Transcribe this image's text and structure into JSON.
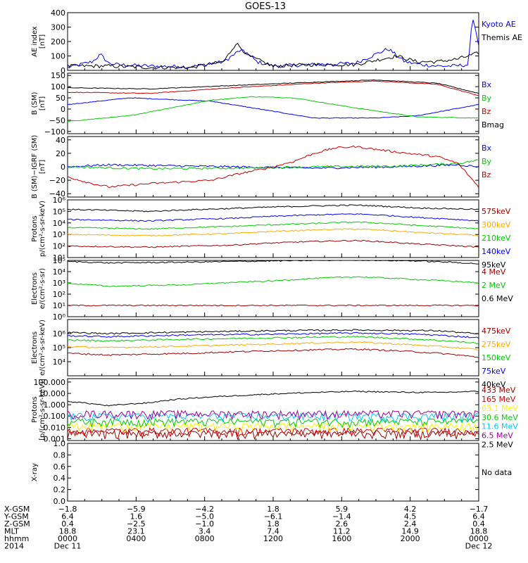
{
  "title": "GOES-13",
  "colors": {
    "black": "#000000",
    "blue": "#0000ff",
    "green": "#00cc00",
    "red": "#cc0000",
    "darkred": "#a00000",
    "orange": "#ffaa00",
    "cyan": "#00c8ff",
    "yellow": "#ffee00",
    "magenta": "#a000a0",
    "brown": "#a03030"
  },
  "chart_data": [
    {
      "type": "line",
      "id": "ae",
      "ylabel": [
        "AE index",
        "[nT]"
      ],
      "ylim": [
        0,
        400
      ],
      "yticks": [
        "0",
        "100",
        "200",
        "300",
        "400"
      ],
      "series": [
        {
          "name": "Kyoto AE",
          "color": "blue",
          "x": [
            0,
            0.06,
            0.08,
            0.1,
            0.12,
            0.2,
            0.3,
            0.38,
            0.42,
            0.44,
            0.46,
            0.5,
            0.6,
            0.7,
            0.78,
            0.82,
            0.86,
            0.9,
            0.94,
            0.975,
            0.985,
            1
          ],
          "values": [
            20,
            60,
            110,
            50,
            40,
            30,
            25,
            60,
            140,
            110,
            60,
            30,
            40,
            50,
            150,
            60,
            40,
            30,
            30,
            40,
            380,
            180
          ]
        },
        {
          "name": "Themis AE",
          "color": "black",
          "x": [
            0,
            0.1,
            0.2,
            0.3,
            0.38,
            0.41,
            0.44,
            0.5,
            0.6,
            0.7,
            0.8,
            0.85,
            0.9,
            0.95,
            1
          ],
          "values": [
            30,
            30,
            20,
            20,
            60,
            190,
            100,
            30,
            40,
            40,
            100,
            60,
            60,
            80,
            120
          ]
        }
      ]
    },
    {
      "type": "line",
      "id": "bsm",
      "ylabel": [
        "B (SM)",
        "[nT]"
      ],
      "ylim": [
        -110,
        160
      ],
      "yticks": [
        "150",
        "100",
        "50",
        "0",
        "−50",
        "−100"
      ],
      "series": [
        {
          "name": "Bx",
          "color": "blue",
          "x": [
            0,
            0.15,
            0.35,
            0.5,
            0.6,
            0.75,
            0.85,
            1
          ],
          "values": [
            20,
            50,
            35,
            -10,
            -40,
            -40,
            -30,
            20
          ]
        },
        {
          "name": "By",
          "color": "green",
          "x": [
            0,
            0.15,
            0.35,
            0.45,
            0.55,
            0.7,
            0.85,
            1
          ],
          "values": [
            -55,
            -30,
            40,
            55,
            50,
            5,
            -35,
            -40
          ]
        },
        {
          "name": "Bz",
          "color": "red",
          "x": [
            0,
            0.2,
            0.4,
            0.6,
            0.75,
            0.9,
            1
          ],
          "values": [
            75,
            70,
            95,
            115,
            125,
            110,
            60
          ]
        },
        {
          "name": "Bmag",
          "color": "black",
          "x": [
            0,
            0.2,
            0.4,
            0.6,
            0.75,
            0.9,
            1
          ],
          "values": [
            95,
            90,
            105,
            120,
            130,
            115,
            70
          ]
        }
      ]
    },
    {
      "type": "line",
      "id": "bdiff",
      "ylabel": [
        "B (SM)−IGRF (SM)",
        "[nT]"
      ],
      "ylim": [
        -45,
        45
      ],
      "yticks": [
        "40",
        "20",
        "0",
        "−20",
        "−40"
      ],
      "series": [
        {
          "name": "Bx",
          "color": "blue",
          "x": [
            0,
            0.1,
            0.2,
            0.4,
            0.6,
            0.8,
            0.95,
            1
          ],
          "values": [
            0,
            3,
            2,
            0,
            -2,
            0,
            3,
            0
          ]
        },
        {
          "name": "By",
          "color": "green",
          "x": [
            0,
            0.2,
            0.4,
            0.6,
            0.8,
            0.95,
            1
          ],
          "values": [
            0,
            -3,
            -2,
            0,
            1,
            5,
            10
          ]
        },
        {
          "name": "Bz",
          "color": "red",
          "x": [
            0,
            0.06,
            0.1,
            0.2,
            0.35,
            0.42,
            0.5,
            0.55,
            0.6,
            0.65,
            0.7,
            0.8,
            0.9,
            0.95,
            1
          ],
          "values": [
            -15,
            -25,
            -30,
            -25,
            -20,
            -10,
            0,
            8,
            20,
            28,
            30,
            22,
            15,
            5,
            -30
          ]
        }
      ]
    },
    {
      "type": "line",
      "id": "protons1",
      "log": true,
      "ylabel": [
        "Protons",
        "p/(cm²-s-sr-keV)"
      ],
      "ylim": [
        10,
        1000000
      ],
      "yticks": [
        "10⁶",
        "10⁵",
        "10⁴",
        "10³",
        "10²",
        "10¹"
      ],
      "series": [
        {
          "name": "575keV",
          "color": "darkred",
          "x": [
            0,
            0.2,
            0.4,
            0.6,
            0.7,
            0.85,
            1
          ],
          "values": [
            100,
            80,
            120,
            250,
            300,
            150,
            80
          ]
        },
        {
          "name": "300keV",
          "color": "orange",
          "x": [
            0,
            0.2,
            0.4,
            0.6,
            0.7,
            0.85,
            1
          ],
          "values": [
            1000,
            800,
            1200,
            2500,
            3000,
            1500,
            800
          ]
        },
        {
          "name": "210keV",
          "color": "green",
          "x": [
            0,
            0.2,
            0.4,
            0.6,
            0.7,
            0.85,
            1
          ],
          "values": [
            4000,
            3000,
            5000,
            9000,
            12000,
            6000,
            3000
          ]
        },
        {
          "name": "140keV",
          "color": "blue",
          "x": [
            0,
            0.2,
            0.4,
            0.6,
            0.7,
            0.85,
            1
          ],
          "values": [
            20000,
            15000,
            25000,
            50000,
            60000,
            30000,
            15000
          ]
        },
        {
          "name": "95keV",
          "color": "black",
          "x": [
            0,
            0.2,
            0.4,
            0.6,
            0.7,
            0.85,
            1
          ],
          "values": [
            150000,
            100000,
            180000,
            300000,
            350000,
            200000,
            150000
          ]
        }
      ]
    },
    {
      "type": "line",
      "id": "electrons1",
      "log": true,
      "ylabel": [
        "Electrons",
        "e/(cm²-s-sr)"
      ],
      "ylim": [
        1,
        100000
      ],
      "yticks": [
        "10⁵",
        "10⁴",
        "10³",
        "10²",
        "10¹",
        "10⁰"
      ],
      "series": [
        {
          "name": "4 MeV",
          "color": "darkred",
          "x": [
            0,
            1
          ],
          "values": [
            10,
            10
          ]
        },
        {
          "name": "2 MeV",
          "color": "green",
          "x": [
            0,
            0.1,
            0.3,
            0.5,
            0.7,
            0.85,
            1
          ],
          "values": [
            900,
            500,
            700,
            1500,
            3500,
            2000,
            1000
          ]
        },
        {
          "name": "0.6 MeV",
          "color": "black",
          "x": [
            0,
            0.1,
            0.3,
            0.5,
            0.7,
            0.85,
            1
          ],
          "values": [
            80000,
            60000,
            70000,
            90000,
            110000,
            90000,
            50000
          ]
        }
      ]
    },
    {
      "type": "line",
      "id": "electrons2",
      "log": true,
      "ylabel": [
        "Electrons",
        "e/(cm²-s-sr-keV)"
      ],
      "ylim": [
        1000,
        10000000
      ],
      "yticks": [
        "10⁶",
        "10⁵",
        "10⁴"
      ],
      "series": [
        {
          "name": "475keV",
          "color": "darkred",
          "x": [
            0,
            0.1,
            0.3,
            0.5,
            0.7,
            0.85,
            1
          ],
          "values": [
            40000,
            30000,
            40000,
            60000,
            80000,
            50000,
            20000
          ]
        },
        {
          "name": "275keV",
          "color": "orange",
          "x": [
            0,
            0.1,
            0.3,
            0.5,
            0.7,
            0.85,
            1
          ],
          "values": [
            120000,
            100000,
            130000,
            180000,
            250000,
            150000,
            70000
          ]
        },
        {
          "name": "150keV",
          "color": "green",
          "x": [
            0,
            0.1,
            0.3,
            0.5,
            0.7,
            0.85,
            1
          ],
          "values": [
            350000,
            300000,
            400000,
            500000,
            600000,
            400000,
            200000
          ]
        },
        {
          "name": "75keV",
          "color": "blue",
          "x": [
            0,
            0.1,
            0.3,
            0.5,
            0.7,
            0.85,
            1
          ],
          "values": [
            700000,
            600000,
            800000,
            900000,
            1100000,
            900000,
            500000
          ]
        },
        {
          "name": "40keV",
          "color": "black",
          "x": [
            0,
            0.1,
            0.3,
            0.5,
            0.7,
            0.9,
            1
          ],
          "values": [
            1200000,
            1000000,
            1300000,
            1600000,
            1800000,
            1600000,
            900000
          ]
        }
      ]
    },
    {
      "type": "line",
      "id": "protons2",
      "log": true,
      "ylabel": [
        "Protons",
        "[p/(cm²-s-sr-keV)]"
      ],
      "ylim": [
        0.0007,
        200
      ],
      "yticks": [
        "100.000",
        "10.000",
        "1.000",
        "0.100",
        "0.010",
        "0.001"
      ],
      "series": [
        {
          "name": "433 MeV",
          "color": "darkred",
          "x": [
            0,
            1
          ],
          "values": [
            0.0009,
            0.0009
          ]
        },
        {
          "name": "165 MeV",
          "color": "red",
          "x": [
            0,
            1
          ],
          "values": [
            0.0015,
            0.0015
          ]
        },
        {
          "name": "63.1 MeV",
          "color": "yellow",
          "x": [
            0,
            1
          ],
          "values": [
            0.004,
            0.004
          ]
        },
        {
          "name": "30.6 MeV",
          "color": "green",
          "x": [
            0,
            1
          ],
          "values": [
            0.01,
            0.01
          ]
        },
        {
          "name": "11.6 MeV",
          "color": "cyan",
          "x": [
            0,
            1
          ],
          "values": [
            0.03,
            0.03
          ]
        },
        {
          "name": "6.5 MeV",
          "color": "magenta",
          "x": [
            0,
            1
          ],
          "values": [
            0.05,
            0.05
          ]
        },
        {
          "name": "2.5 MeV",
          "color": "black",
          "x": [
            0,
            0.06,
            0.1,
            0.2,
            0.4,
            0.6,
            0.7,
            0.8,
            0.9,
            1
          ],
          "values": [
            2,
            1.2,
            0.8,
            1.5,
            6,
            12,
            15,
            13,
            12,
            15
          ]
        }
      ]
    },
    {
      "type": "line",
      "id": "xray",
      "ylabel": [
        "X-ray",
        ""
      ],
      "ylim": [
        0,
        1
      ],
      "yticks": [
        "1.0",
        "0.8",
        "0.6",
        "0.4",
        "0.2",
        "0.0"
      ],
      "note": "No data",
      "series": []
    }
  ],
  "ephem": {
    "rows": [
      {
        "label": "X-GSM",
        "values": [
          "−1.8",
          "−5.9",
          "−4.2",
          "1.8",
          "5.9",
          "4.2",
          "−1.7"
        ]
      },
      {
        "label": "Y-GSM",
        "values": [
          "6.4",
          "1.6",
          "−5.0",
          "−6.1",
          "−1.4",
          "4.5",
          "6.4"
        ]
      },
      {
        "label": "Z-GSM",
        "values": [
          "0.4",
          "−2.5",
          "−1.0",
          "1.8",
          "2.6",
          "2.4",
          "0.4"
        ]
      },
      {
        "label": "MLT",
        "values": [
          "18.8",
          "23.1",
          "3.4",
          "7.4",
          "11.2",
          "14.9",
          "18.8"
        ]
      },
      {
        "label": "hhmm",
        "values": [
          "0000",
          "0400",
          "0800",
          "1200",
          "1600",
          "2000",
          "0000"
        ]
      },
      {
        "label": "2014",
        "values": [
          "Dec 11",
          "",
          "",
          "",
          "",
          "",
          "Dec 12"
        ]
      }
    ]
  }
}
